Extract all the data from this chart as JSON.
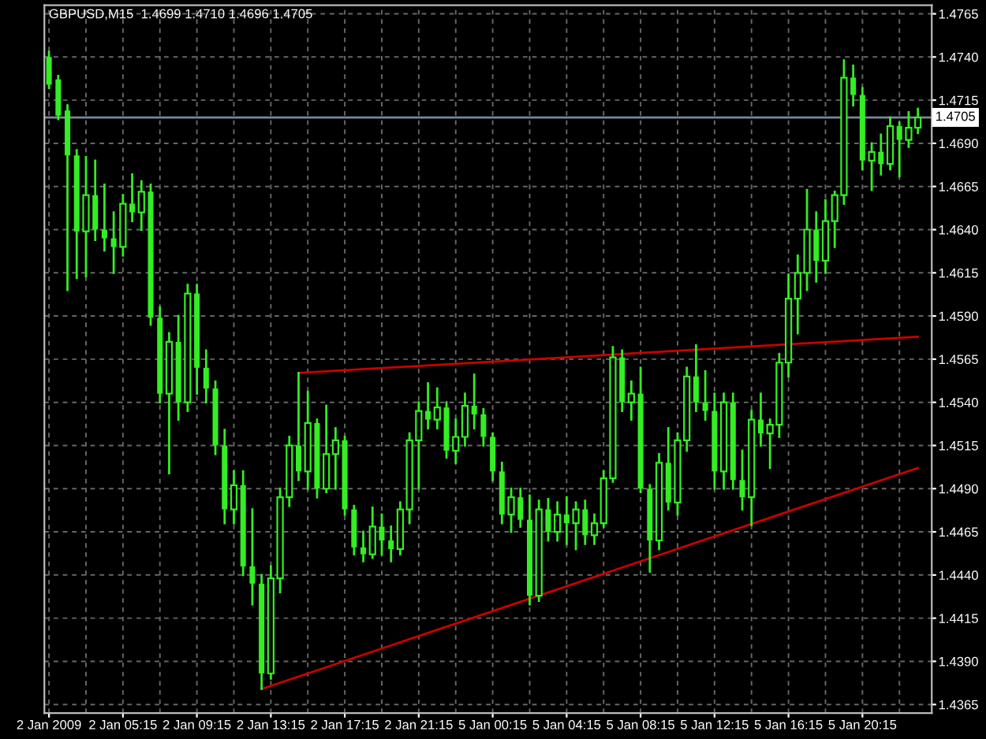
{
  "chart_data": {
    "type": "candlestick",
    "title": "GBPUSD,M15  1.4699 1.4710 1.4696 1.4705",
    "categories": [
      "2 Jan 2009",
      null,
      null,
      null,
      null,
      null,
      null,
      null,
      "2 Jan 05:15",
      null,
      null,
      null,
      null,
      null,
      null,
      null,
      "2 Jan 09:15",
      null,
      null,
      null,
      null,
      null,
      null,
      null,
      "2 Jan 13:15",
      null,
      null,
      null,
      null,
      null,
      null,
      null,
      "2 Jan 17:15",
      null,
      null,
      null,
      null,
      null,
      null,
      null,
      "2 Jan 21:15",
      null,
      null,
      null,
      null,
      null,
      null,
      null,
      "5 Jan 00:15",
      null,
      null,
      null,
      null,
      null,
      null,
      null,
      "5 Jan 04:15",
      null,
      null,
      null,
      null,
      null,
      null,
      null,
      "5 Jan 08:15",
      null,
      null,
      null,
      null,
      null,
      null,
      null,
      "5 Jan 12:15",
      null,
      null,
      null,
      null,
      null,
      null,
      null,
      "5 Jan 16:15",
      null,
      null,
      null,
      null,
      null,
      null,
      null,
      "5 Jan 20:15",
      null,
      null,
      null,
      null,
      null,
      null
    ],
    "color": "#33ee22",
    "ohlc": [
      [
        1.474,
        1.4743,
        1.4722,
        1.4724
      ],
      [
        1.4727,
        1.4729,
        1.4704,
        1.4706
      ],
      [
        1.4709,
        1.4712,
        1.4605,
        1.4683
      ],
      [
        1.4683,
        1.4686,
        1.4612,
        1.4639
      ],
      [
        1.4639,
        1.4682,
        1.4613,
        1.466
      ],
      [
        1.466,
        1.468,
        1.4634,
        1.464
      ],
      [
        1.464,
        1.4666,
        1.4628,
        1.4635
      ],
      [
        1.4635,
        1.465,
        1.4615,
        1.463
      ],
      [
        1.463,
        1.466,
        1.4625,
        1.4655
      ],
      [
        1.4655,
        1.4672,
        1.4645,
        1.465
      ],
      [
        1.465,
        1.4668,
        1.464,
        1.4662
      ],
      [
        1.4662,
        1.4666,
        1.4585,
        1.4589
      ],
      [
        1.4589,
        1.4595,
        1.454,
        1.4545
      ],
      [
        1.4545,
        1.458,
        1.4499,
        1.4575
      ],
      [
        1.4575,
        1.459,
        1.453,
        1.454
      ],
      [
        1.454,
        1.4608,
        1.4535,
        1.4603
      ],
      [
        1.4603,
        1.4608,
        1.4545,
        1.456
      ],
      [
        1.456,
        1.457,
        1.454,
        1.4548
      ],
      [
        1.4548,
        1.4552,
        1.451,
        1.4515
      ],
      [
        1.4515,
        1.4524,
        1.447,
        1.4478
      ],
      [
        1.4478,
        1.45,
        1.447,
        1.4492
      ],
      [
        1.4492,
        1.45,
        1.444,
        1.4445
      ],
      [
        1.4445,
        1.4478,
        1.4423,
        1.4435
      ],
      [
        1.4435,
        1.444,
        1.4374,
        1.4383
      ],
      [
        1.4383,
        1.4445,
        1.438,
        1.4438
      ],
      [
        1.4438,
        1.449,
        1.443,
        1.4485
      ],
      [
        1.4485,
        1.452,
        1.448,
        1.4515
      ],
      [
        1.4515,
        1.4557,
        1.4495,
        1.45
      ],
      [
        1.45,
        1.4546,
        1.449,
        1.4528
      ],
      [
        1.4528,
        1.453,
        1.4485,
        1.449
      ],
      [
        1.449,
        1.4538,
        1.4488,
        1.451
      ],
      [
        1.451,
        1.4525,
        1.449,
        1.4518
      ],
      [
        1.4518,
        1.452,
        1.4475,
        1.4478
      ],
      [
        1.4478,
        1.448,
        1.4452,
        1.4456
      ],
      [
        1.4456,
        1.4465,
        1.4448,
        1.4452
      ],
      [
        1.4452,
        1.4479,
        1.445,
        1.4468
      ],
      [
        1.4468,
        1.4475,
        1.4452,
        1.446
      ],
      [
        1.446,
        1.4468,
        1.4448,
        1.4455
      ],
      [
        1.4455,
        1.4482,
        1.4452,
        1.4478
      ],
      [
        1.4478,
        1.4522,
        1.447,
        1.4518
      ],
      [
        1.4518,
        1.454,
        1.449,
        1.4535
      ],
      [
        1.4535,
        1.4551,
        1.4525,
        1.453
      ],
      [
        1.453,
        1.4548,
        1.4525,
        1.4537
      ],
      [
        1.4537,
        1.454,
        1.4508,
        1.4512
      ],
      [
        1.4512,
        1.453,
        1.4505,
        1.452
      ],
      [
        1.452,
        1.4545,
        1.4515,
        1.4538
      ],
      [
        1.4538,
        1.4556,
        1.4525,
        1.4533
      ],
      [
        1.4533,
        1.4536,
        1.4515,
        1.452
      ],
      [
        1.452,
        1.4522,
        1.4495,
        1.45
      ],
      [
        1.45,
        1.4505,
        1.447,
        1.4475
      ],
      [
        1.4475,
        1.449,
        1.4465,
        1.4485
      ],
      [
        1.4485,
        1.449,
        1.4468,
        1.4472
      ],
      [
        1.4472,
        1.4486,
        1.4423,
        1.4428
      ],
      [
        1.4428,
        1.4483,
        1.4425,
        1.4478
      ],
      [
        1.4478,
        1.4484,
        1.446,
        1.4465
      ],
      [
        1.4465,
        1.4482,
        1.446,
        1.4475
      ],
      [
        1.4475,
        1.4485,
        1.4458,
        1.447
      ],
      [
        1.447,
        1.4482,
        1.4455,
        1.4478
      ],
      [
        1.4478,
        1.4483,
        1.4458,
        1.4463
      ],
      [
        1.4463,
        1.4475,
        1.4458,
        1.447
      ],
      [
        1.447,
        1.45,
        1.4468,
        1.4496
      ],
      [
        1.4496,
        1.4572,
        1.4494,
        1.4566
      ],
      [
        1.4566,
        1.457,
        1.4535,
        1.454
      ],
      [
        1.454,
        1.4552,
        1.453,
        1.4545
      ],
      [
        1.4545,
        1.456,
        1.4488,
        1.449
      ],
      [
        1.449,
        1.4492,
        1.4442,
        1.446
      ],
      [
        1.446,
        1.451,
        1.4455,
        1.4505
      ],
      [
        1.4505,
        1.4525,
        1.4478,
        1.4482
      ],
      [
        1.4482,
        1.4522,
        1.4475,
        1.4518
      ],
      [
        1.4518,
        1.456,
        1.4512,
        1.4555
      ],
      [
        1.4555,
        1.4573,
        1.4535,
        1.454
      ],
      [
        1.454,
        1.4558,
        1.453,
        1.4535
      ],
      [
        1.4535,
        1.4545,
        1.449,
        1.45
      ],
      [
        1.45,
        1.4545,
        1.449,
        1.454
      ],
      [
        1.454,
        1.4545,
        1.449,
        1.4495
      ],
      [
        1.4495,
        1.4512,
        1.4478,
        1.4485
      ],
      [
        1.4485,
        1.4535,
        1.4469,
        1.453
      ],
      [
        1.453,
        1.4545,
        1.4515,
        1.4522
      ],
      [
        1.4522,
        1.453,
        1.4502,
        1.4527
      ],
      [
        1.4527,
        1.4568,
        1.452,
        1.4563
      ],
      [
        1.4563,
        1.4614,
        1.4555,
        1.46
      ],
      [
        1.46,
        1.4625,
        1.458,
        1.4615
      ],
      [
        1.4615,
        1.4663,
        1.4605,
        1.464
      ],
      [
        1.464,
        1.465,
        1.461,
        1.4622
      ],
      [
        1.4622,
        1.4657,
        1.4615,
        1.4645
      ],
      [
        1.4645,
        1.4662,
        1.463,
        1.466
      ],
      [
        1.466,
        1.4738,
        1.4655,
        1.4728
      ],
      [
        1.4728,
        1.4735,
        1.4712,
        1.4718
      ],
      [
        1.4718,
        1.4722,
        1.4675,
        1.468
      ],
      [
        1.468,
        1.469,
        1.4663,
        1.4685
      ],
      [
        1.4685,
        1.4695,
        1.4672,
        1.4678
      ],
      [
        1.4678,
        1.4705,
        1.4675,
        1.47
      ],
      [
        1.47,
        1.4702,
        1.4671,
        1.4692
      ],
      [
        1.4692,
        1.4708,
        1.4688,
        1.4699
      ],
      [
        1.4699,
        1.471,
        1.4696,
        1.4705
      ]
    ],
    "series": [
      {
        "type": "line",
        "color": "#cc0000",
        "values": [
          null,
          null,
          null,
          null,
          null,
          null,
          null,
          null,
          null,
          null,
          null,
          null,
          null,
          null,
          null,
          null,
          null,
          null,
          null,
          null,
          null,
          null,
          null,
          null,
          null,
          null,
          null,
          1.4557,
          null,
          null,
          null,
          null,
          null,
          null,
          null,
          null,
          null,
          null,
          null,
          null,
          null,
          null,
          null,
          null,
          null,
          null,
          null,
          null,
          null,
          null,
          null,
          null,
          null,
          null,
          null,
          null,
          null,
          null,
          null,
          null,
          null,
          null,
          null,
          null,
          null,
          null,
          null,
          null,
          null,
          null,
          null,
          null,
          null,
          null,
          null,
          null,
          null,
          null,
          null,
          null,
          null,
          null,
          null,
          null,
          null,
          null,
          null,
          null,
          null,
          null,
          null,
          null,
          null,
          null,
          1.4578
        ]
      },
      {
        "type": "line",
        "color": "#cc0000",
        "values": [
          null,
          null,
          null,
          null,
          null,
          null,
          null,
          null,
          null,
          null,
          null,
          null,
          null,
          null,
          null,
          null,
          null,
          null,
          null,
          null,
          null,
          null,
          null,
          1.4374,
          null,
          null,
          null,
          null,
          null,
          null,
          null,
          null,
          null,
          null,
          null,
          null,
          null,
          null,
          null,
          null,
          null,
          null,
          null,
          null,
          null,
          null,
          null,
          null,
          null,
          null,
          null,
          null,
          null,
          null,
          null,
          null,
          null,
          null,
          null,
          null,
          null,
          null,
          null,
          null,
          null,
          null,
          null,
          null,
          null,
          null,
          null,
          null,
          null,
          null,
          null,
          null,
          null,
          null,
          null,
          null,
          null,
          null,
          null,
          null,
          null,
          null,
          null,
          null,
          null,
          null,
          null,
          null,
          null,
          null,
          1.4502
        ]
      }
    ],
    "ylim": [
      1.436,
      1.477
    ],
    "yticks": [
      {
        "value": 1.4365,
        "label": "1.4365"
      },
      {
        "value": 1.439,
        "label": "1.4390"
      },
      {
        "value": 1.4415,
        "label": "1.4415"
      },
      {
        "value": 1.444,
        "label": "1.4440"
      },
      {
        "value": 1.4465,
        "label": "1.4465"
      },
      {
        "value": 1.449,
        "label": "1.4490"
      },
      {
        "value": 1.4515,
        "label": "1.4515"
      },
      {
        "value": 1.454,
        "label": "1.4540"
      },
      {
        "value": 1.4565,
        "label": "1.4565"
      },
      {
        "value": 1.459,
        "label": "1.4590"
      },
      {
        "value": 1.4615,
        "label": "1.4615"
      },
      {
        "value": 1.464,
        "label": "1.4640"
      },
      {
        "value": 1.4665,
        "label": "1.4665"
      },
      {
        "value": 1.469,
        "label": "1.4690"
      },
      {
        "value": 1.4715,
        "label": "1.4715"
      },
      {
        "value": 1.474,
        "label": "1.4740"
      },
      {
        "value": 1.4765,
        "label": "1.4765"
      }
    ],
    "ref_lines": [
      {
        "axis": "y",
        "value": 1.4705,
        "label": "1.4705",
        "color": "#778899"
      }
    ],
    "grid": true,
    "legend": false
  }
}
